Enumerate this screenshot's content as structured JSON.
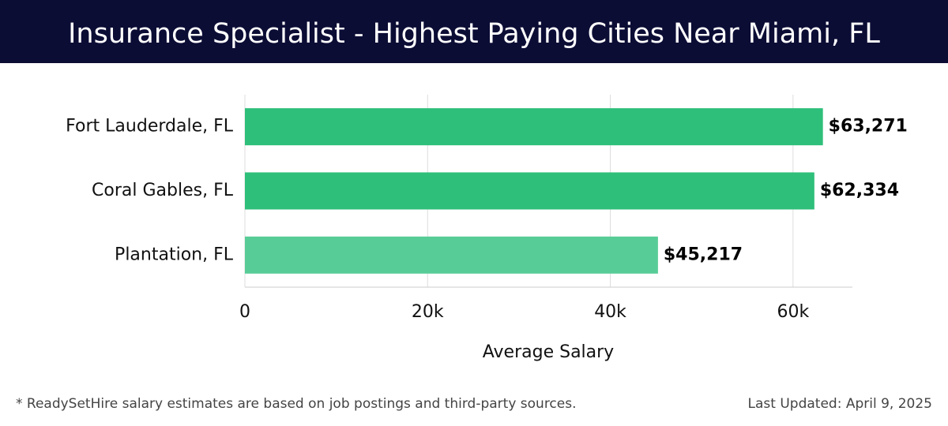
{
  "chart_data": {
    "type": "bar",
    "orientation": "horizontal",
    "title": "Insurance Specialist - Highest Paying Cities Near Miami, FL",
    "categories": [
      "Fort Lauderdale, FL",
      "Coral Gables, FL",
      "Plantation, FL"
    ],
    "values": [
      63271,
      62334,
      45217
    ],
    "value_labels": [
      "$63,271",
      "$62,334",
      "$45,217"
    ],
    "colors": [
      "#2ebf7a",
      "#2ebf7a",
      "#58cc97"
    ],
    "xlim": [
      0,
      66500
    ],
    "xticks": [
      0,
      {
        "value": 20000,
        "label": "20k"
      },
      {
        "value": 40000,
        "label": "40k"
      },
      {
        "value": 60000,
        "label": "60k"
      }
    ],
    "xlabel": "Average Salary",
    "grid": true,
    "footnote": "* ReadySetHire salary estimates are based on job postings and third-party sources.",
    "updated": "Last Updated: April 9, 2025"
  }
}
